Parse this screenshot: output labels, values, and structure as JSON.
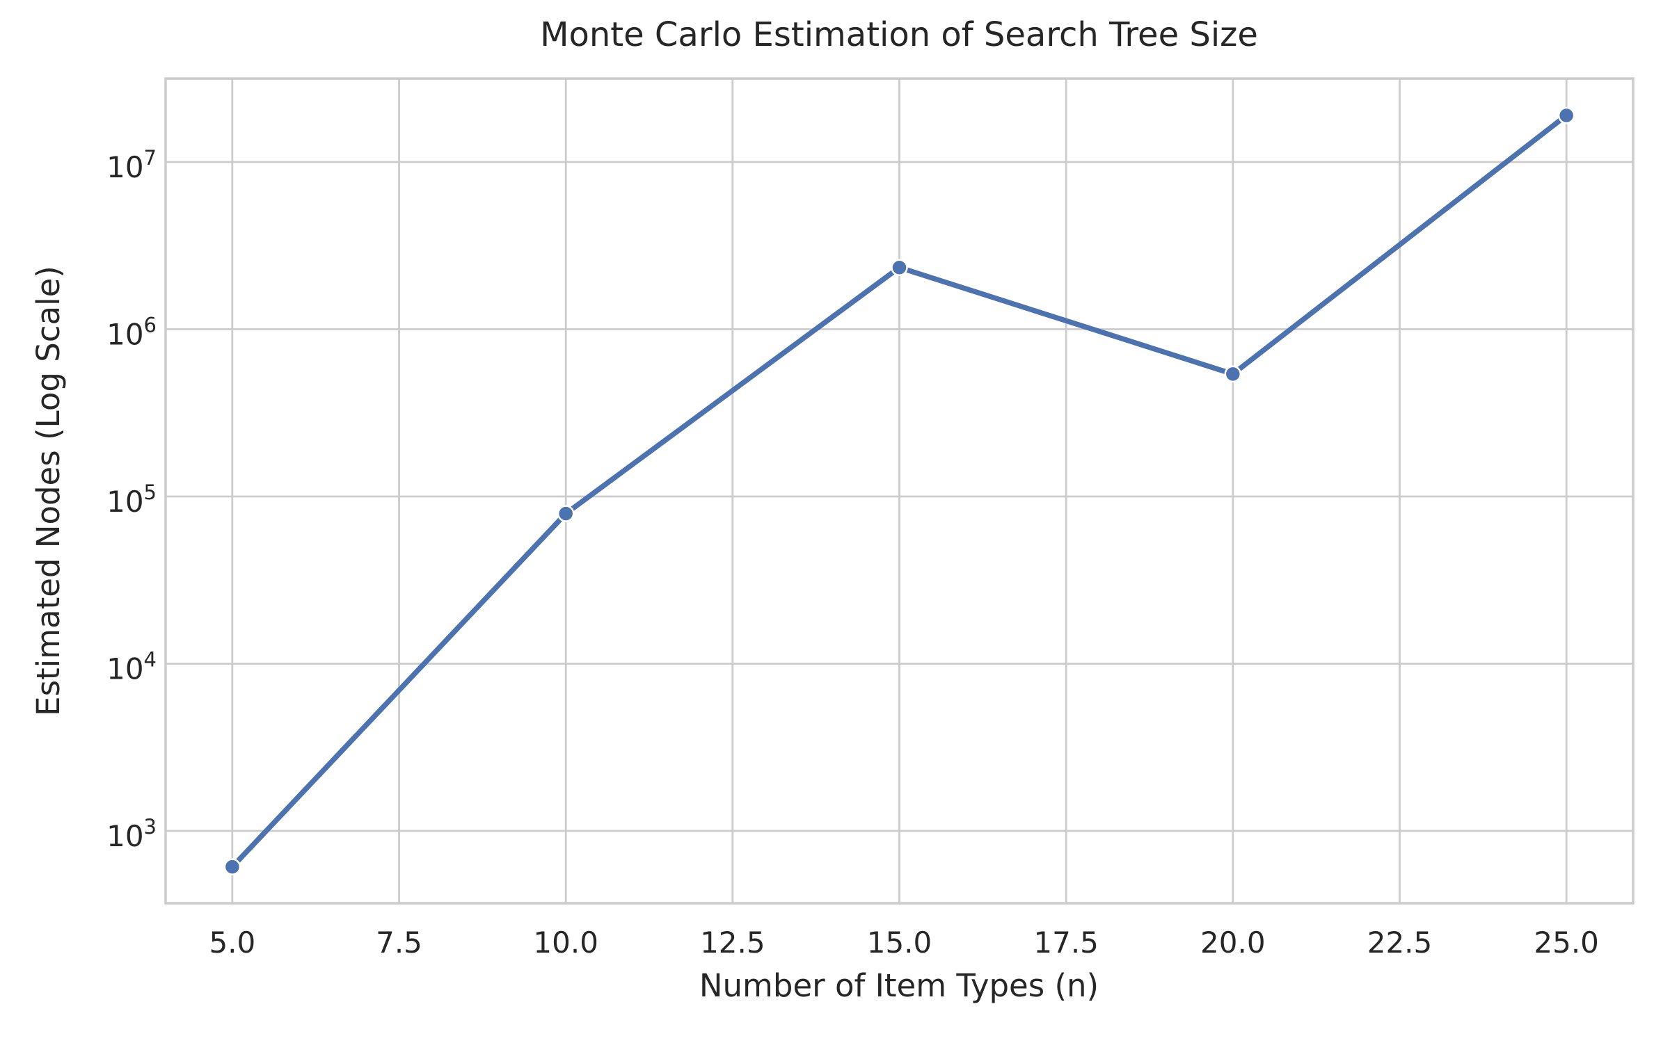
{
  "chart_data": {
    "type": "line",
    "title": "Monte Carlo Estimation of Search Tree Size",
    "xlabel": "Number of Item Types (n)",
    "ylabel": "Estimated Nodes (Log Scale)",
    "x": [
      5,
      10,
      15,
      20,
      25
    ],
    "y": [
      610,
      79000,
      2340000,
      540000,
      19000000
    ],
    "yscale": "log",
    "xlim": [
      4,
      26
    ],
    "ylim_exp": [
      2.5676,
      7.499
    ],
    "x_ticks": [
      {
        "value": 5,
        "label": "5.0"
      },
      {
        "value": 7.5,
        "label": "7.5"
      },
      {
        "value": 10,
        "label": "10.0"
      },
      {
        "value": 12.5,
        "label": "12.5"
      },
      {
        "value": 15,
        "label": "15.0"
      },
      {
        "value": 17.5,
        "label": "17.5"
      },
      {
        "value": 20,
        "label": "20.0"
      },
      {
        "value": 22.5,
        "label": "22.5"
      },
      {
        "value": 25,
        "label": "25.0"
      }
    ],
    "y_ticks": [
      {
        "exponent": 3,
        "base": "10",
        "sup": "3"
      },
      {
        "exponent": 4,
        "base": "10",
        "sup": "4"
      },
      {
        "exponent": 5,
        "base": "10",
        "sup": "5"
      },
      {
        "exponent": 6,
        "base": "10",
        "sup": "6"
      },
      {
        "exponent": 7,
        "base": "10",
        "sup": "7"
      }
    ],
    "grid": true,
    "legend_position": "none",
    "colors": {
      "line": "#4C72B0",
      "marker_fill": "#4C72B0",
      "marker_edge": "#FFFFFF",
      "grid": "#CCCCCC",
      "spine": "#CCCCCC",
      "text": "#262626",
      "background": "#FFFFFF"
    }
  }
}
